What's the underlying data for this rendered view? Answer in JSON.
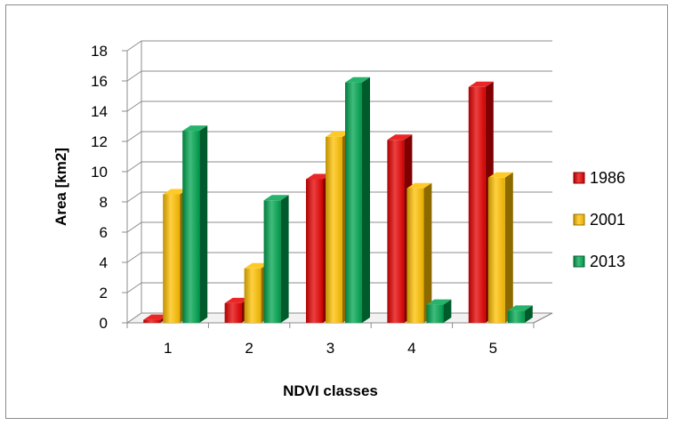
{
  "chart_data": {
    "type": "bar",
    "title": "",
    "xlabel": "NDVI classes",
    "ylabel": "Area [km2]",
    "ylim": [
      0,
      18
    ],
    "yticks": [
      0,
      2,
      4,
      6,
      8,
      10,
      12,
      14,
      16,
      18
    ],
    "grid": true,
    "legend_position": "right",
    "categories": [
      "1",
      "2",
      "3",
      "4",
      "5"
    ],
    "series": [
      {
        "name": "1986",
        "color": "#e60000",
        "values": [
          0.2,
          1.3,
          9.5,
          12.1,
          15.6
        ]
      },
      {
        "name": "2001",
        "color": "#ffc000",
        "values": [
          8.5,
          3.6,
          12.3,
          8.9,
          9.6
        ]
      },
      {
        "name": "2013",
        "color": "#00a550",
        "values": [
          12.7,
          8.1,
          15.9,
          1.2,
          0.8
        ]
      }
    ]
  }
}
